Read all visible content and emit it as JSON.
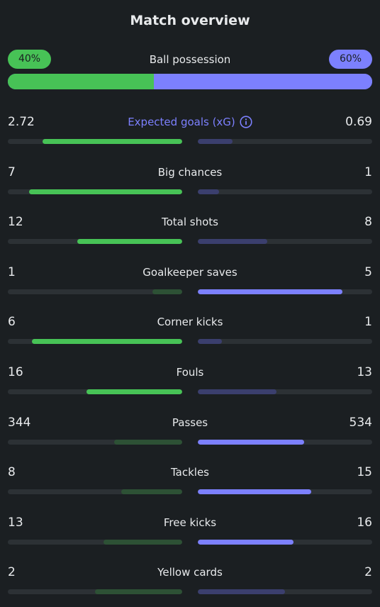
{
  "title": "Match overview",
  "possession": {
    "label": "Ball possession",
    "home": "40%",
    "away": "60%",
    "home_fraction": 0.4,
    "away_fraction": 0.6
  },
  "colors": {
    "home": "#47c256",
    "away": "#7c80fe",
    "background": "#1b1f22"
  },
  "stats": [
    {
      "label": "Expected goals (xG)",
      "home": "2.72",
      "away": "0.69",
      "home_fraction": 0.8,
      "away_fraction": 0.2,
      "info": true
    },
    {
      "label": "Big chances",
      "home": "7",
      "away": "1",
      "home_fraction": 0.88,
      "away_fraction": 0.12
    },
    {
      "label": "Total shots",
      "home": "12",
      "away": "8",
      "home_fraction": 0.6,
      "away_fraction": 0.4
    },
    {
      "label": "Goalkeeper saves",
      "home": "1",
      "away": "5",
      "home_fraction": 0.17,
      "away_fraction": 0.83
    },
    {
      "label": "Corner kicks",
      "home": "6",
      "away": "1",
      "home_fraction": 0.86,
      "away_fraction": 0.14
    },
    {
      "label": "Fouls",
      "home": "16",
      "away": "13",
      "home_fraction": 0.55,
      "away_fraction": 0.45
    },
    {
      "label": "Passes",
      "home": "344",
      "away": "534",
      "home_fraction": 0.39,
      "away_fraction": 0.61
    },
    {
      "label": "Tackles",
      "home": "8",
      "away": "15",
      "home_fraction": 0.35,
      "away_fraction": 0.65
    },
    {
      "label": "Free kicks",
      "home": "13",
      "away": "16",
      "home_fraction": 0.45,
      "away_fraction": 0.55
    },
    {
      "label": "Yellow cards",
      "home": "2",
      "away": "2",
      "home_fraction": 0.5,
      "away_fraction": 0.5
    }
  ]
}
